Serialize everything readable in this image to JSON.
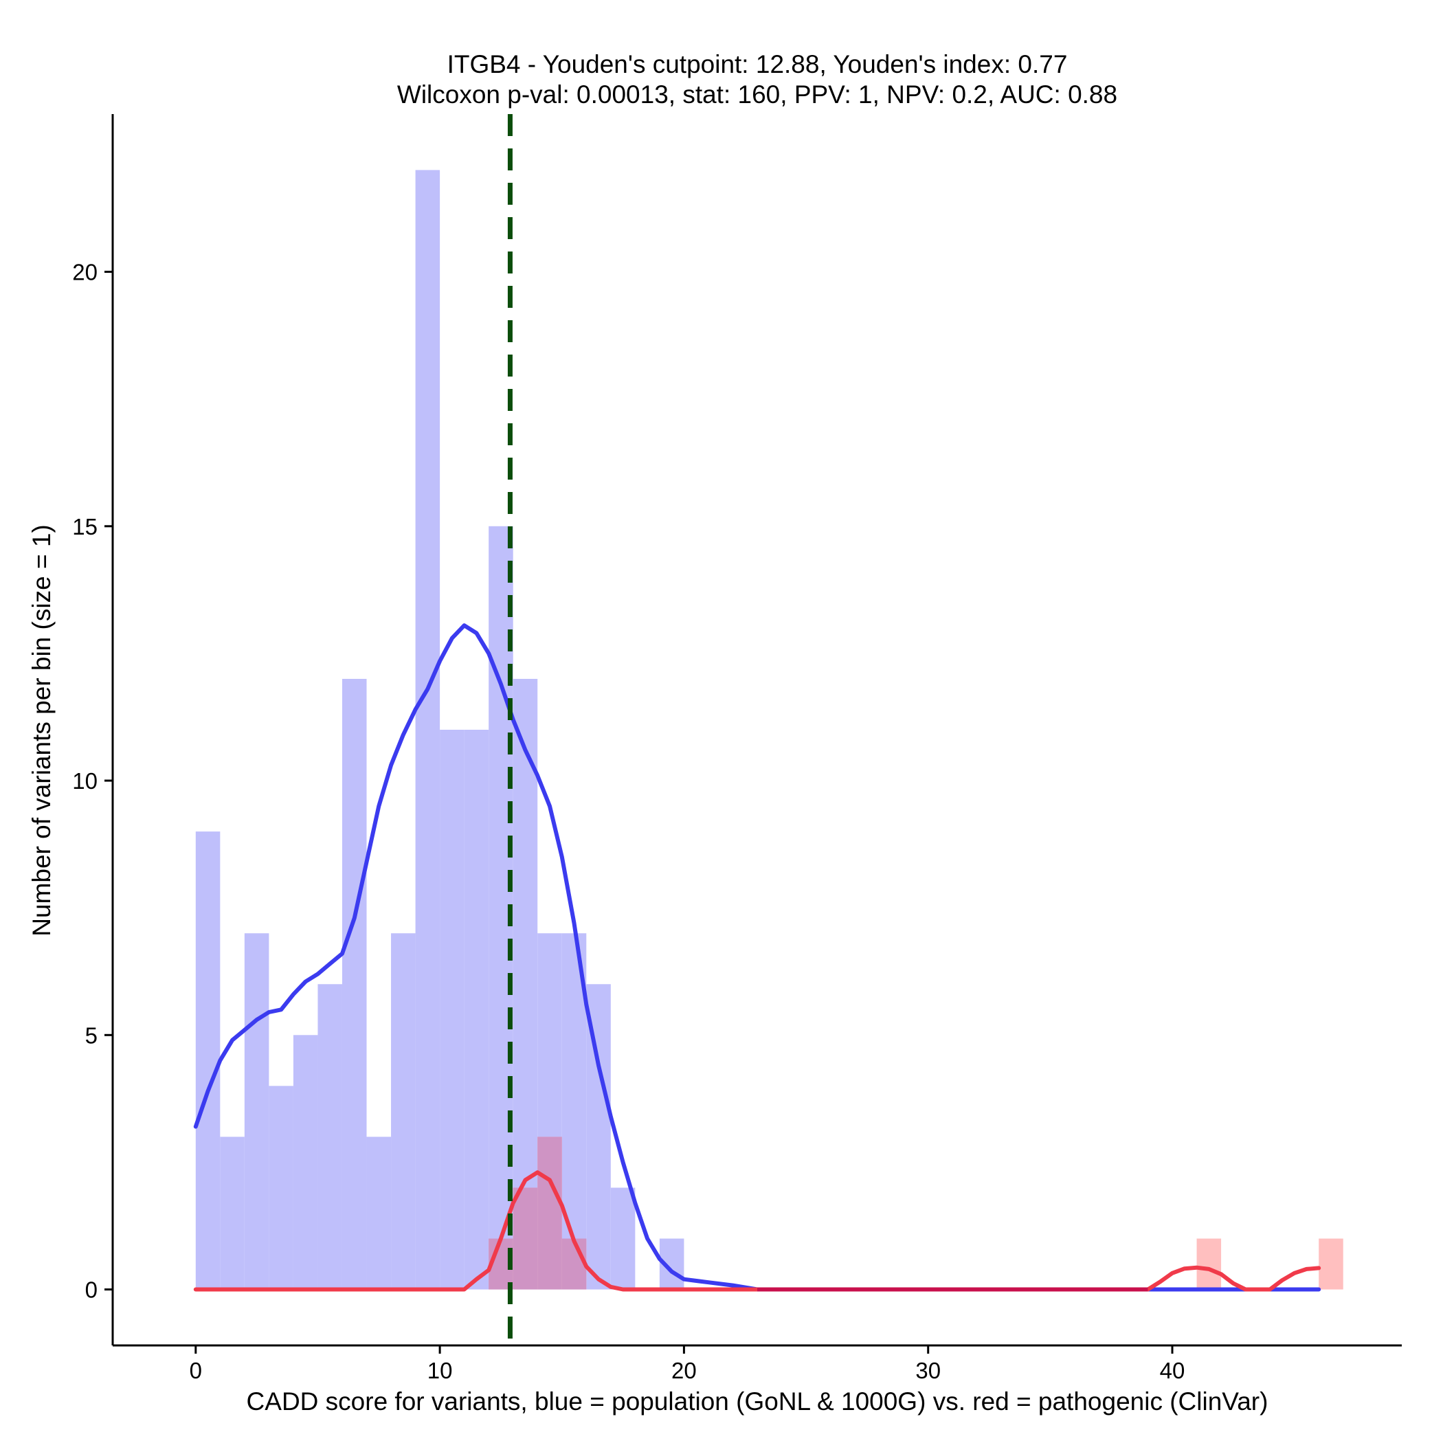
{
  "chart_data": {
    "type": "histogram",
    "title_line1": "ITGB4 - Youden's cutpoint: 12.88, Youden's index: 0.77",
    "title_line2": "Wilcoxon p-val: 0.00013, stat: 160, PPV: 1, NPV: 0.2, AUC: 0.88",
    "xlabel": "CADD score for variants, blue = population (GoNL & 1000G) vs. red = pathogenic (ClinVar)",
    "ylabel": "Number of variants per bin (size = 1)",
    "xlim": [
      -3.4,
      49.4
    ],
    "ylim": [
      -1.1,
      23.1
    ],
    "x_ticks": [
      0,
      10,
      20,
      30,
      40
    ],
    "x_tick_labels": [
      "0",
      "10",
      "20",
      "30",
      "40"
    ],
    "y_ticks": [
      0,
      5,
      10,
      15,
      20
    ],
    "y_tick_labels": [
      "0",
      "5",
      "10",
      "15",
      "20"
    ],
    "bin_size": 1,
    "cutpoint": 12.88,
    "colors": {
      "population_bar": "#bfbffb",
      "pathogenic_bar": "#ffbfbf",
      "overlap_bar": "#cf94c4",
      "population_line": "#3b3bef",
      "pathogenic_line": "#f03a4a",
      "overlap_line": "#c8104c",
      "cutpoint_line": "#0b4d0b",
      "axis": "#000000"
    },
    "series": [
      {
        "name": "population (GoNL & 1000G)",
        "bins": [
          {
            "x0": 0,
            "count": 9
          },
          {
            "x0": 1,
            "count": 3
          },
          {
            "x0": 2,
            "count": 7
          },
          {
            "x0": 3,
            "count": 4
          },
          {
            "x0": 4,
            "count": 5
          },
          {
            "x0": 5,
            "count": 6
          },
          {
            "x0": 6,
            "count": 12
          },
          {
            "x0": 7,
            "count": 3
          },
          {
            "x0": 8,
            "count": 7
          },
          {
            "x0": 9,
            "count": 22
          },
          {
            "x0": 10,
            "count": 11
          },
          {
            "x0": 11,
            "count": 11
          },
          {
            "x0": 12,
            "count": 15
          },
          {
            "x0": 13,
            "count": 12
          },
          {
            "x0": 14,
            "count": 7
          },
          {
            "x0": 15,
            "count": 7
          },
          {
            "x0": 16,
            "count": 6
          },
          {
            "x0": 17,
            "count": 2
          },
          {
            "x0": 19,
            "count": 1
          }
        ],
        "density": [
          [
            0,
            3.2
          ],
          [
            0.5,
            3.9
          ],
          [
            1,
            4.5
          ],
          [
            1.5,
            4.9
          ],
          [
            2,
            5.1
          ],
          [
            2.5,
            5.3
          ],
          [
            3,
            5.45
          ],
          [
            3.5,
            5.5
          ],
          [
            4,
            5.8
          ],
          [
            4.5,
            6.05
          ],
          [
            5,
            6.2
          ],
          [
            5.5,
            6.4
          ],
          [
            6,
            6.6
          ],
          [
            6.5,
            7.3
          ],
          [
            7,
            8.4
          ],
          [
            7.5,
            9.5
          ],
          [
            8,
            10.3
          ],
          [
            8.5,
            10.9
          ],
          [
            9,
            11.4
          ],
          [
            9.5,
            11.8
          ],
          [
            10,
            12.35
          ],
          [
            10.5,
            12.8
          ],
          [
            11,
            13.05
          ],
          [
            11.5,
            12.9
          ],
          [
            12,
            12.5
          ],
          [
            12.5,
            11.9
          ],
          [
            13,
            11.2
          ],
          [
            13.5,
            10.6
          ],
          [
            14,
            10.1
          ],
          [
            14.5,
            9.5
          ],
          [
            15,
            8.5
          ],
          [
            15.5,
            7.2
          ],
          [
            16,
            5.6
          ],
          [
            16.5,
            4.4
          ],
          [
            17,
            3.4
          ],
          [
            17.5,
            2.5
          ],
          [
            18,
            1.7
          ],
          [
            18.5,
            1.0
          ],
          [
            19,
            0.6
          ],
          [
            19.5,
            0.35
          ],
          [
            20,
            0.2
          ],
          [
            21,
            0.14
          ],
          [
            22,
            0.08
          ],
          [
            23,
            0.0
          ],
          [
            30,
            0.0
          ],
          [
            40,
            0.0
          ],
          [
            46,
            0.0
          ]
        ]
      },
      {
        "name": "pathogenic (ClinVar)",
        "bins": [
          {
            "x0": 12,
            "count": 1
          },
          {
            "x0": 13,
            "count": 2
          },
          {
            "x0": 14,
            "count": 3
          },
          {
            "x0": 15,
            "count": 1
          },
          {
            "x0": 41,
            "count": 1
          },
          {
            "x0": 46,
            "count": 1
          }
        ],
        "density": [
          [
            0,
            0.0
          ],
          [
            11,
            0.0
          ],
          [
            11.5,
            0.2
          ],
          [
            12,
            0.38
          ],
          [
            12.5,
            1.0
          ],
          [
            13,
            1.7
          ],
          [
            13.5,
            2.15
          ],
          [
            14,
            2.3
          ],
          [
            14.5,
            2.15
          ],
          [
            15,
            1.65
          ],
          [
            15.5,
            0.95
          ],
          [
            16,
            0.45
          ],
          [
            16.5,
            0.2
          ],
          [
            17,
            0.05
          ],
          [
            17.5,
            0.0
          ],
          [
            39,
            0.0
          ],
          [
            39.5,
            0.15
          ],
          [
            40,
            0.32
          ],
          [
            40.5,
            0.41
          ],
          [
            41,
            0.43
          ],
          [
            41.5,
            0.4
          ],
          [
            42,
            0.3
          ],
          [
            42.5,
            0.12
          ],
          [
            43,
            0.0
          ],
          [
            44,
            0.0
          ],
          [
            44.5,
            0.18
          ],
          [
            45,
            0.32
          ],
          [
            45.5,
            0.4
          ],
          [
            46,
            0.42
          ]
        ]
      }
    ]
  }
}
